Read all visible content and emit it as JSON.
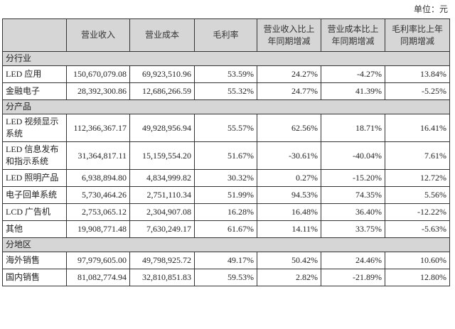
{
  "unit_label": "单位：元",
  "headers": [
    "",
    "营业收入",
    "营业成本",
    "毛利率",
    "营业收入比上年同期增减",
    "营业成本比上年同期增减",
    "毛利率比上年同期增减"
  ],
  "sections": [
    {
      "title": "分行业",
      "rows": [
        {
          "label": "LED 应用",
          "revenue": "150,670,079.08",
          "cost": "69,923,510.96",
          "margin": "53.59%",
          "rev_yoy": "24.27%",
          "cost_yoy": "-4.27%",
          "margin_yoy": "13.84%"
        },
        {
          "label": "金融电子",
          "revenue": "28,392,300.86",
          "cost": "12,686,266.59",
          "margin": "55.32%",
          "rev_yoy": "24.77%",
          "cost_yoy": "41.39%",
          "margin_yoy": "-5.25%"
        }
      ]
    },
    {
      "title": "分产品",
      "rows": [
        {
          "label": "LED 视频显示系统",
          "revenue": "112,366,367.17",
          "cost": "49,928,956.94",
          "margin": "55.57%",
          "rev_yoy": "62.56%",
          "cost_yoy": "18.71%",
          "margin_yoy": "16.41%"
        },
        {
          "label": "LED 信息发布和指示系统",
          "revenue": "31,364,817.11",
          "cost": "15,159,554.20",
          "margin": "51.67%",
          "rev_yoy": "-30.61%",
          "cost_yoy": "-40.04%",
          "margin_yoy": "7.61%"
        },
        {
          "label": "LED 照明产品",
          "revenue": "6,938,894.80",
          "cost": "4,834,999.82",
          "margin": "30.32%",
          "rev_yoy": "0.27%",
          "cost_yoy": "-15.20%",
          "margin_yoy": "12.72%"
        },
        {
          "label": "电子回单系统",
          "revenue": "5,730,464.26",
          "cost": "2,751,110.34",
          "margin": "51.99%",
          "rev_yoy": "94.53%",
          "cost_yoy": "74.35%",
          "margin_yoy": "5.56%"
        },
        {
          "label": "LCD 广告机",
          "revenue": "2,753,065.12",
          "cost": "2,304,907.08",
          "margin": "16.28%",
          "rev_yoy": "16.48%",
          "cost_yoy": "36.40%",
          "margin_yoy": "-12.22%"
        },
        {
          "label": "其他",
          "revenue": "19,908,771.48",
          "cost": "7,630,249.17",
          "margin": "61.67%",
          "rev_yoy": "14.11%",
          "cost_yoy": "33.75%",
          "margin_yoy": "-5.63%"
        }
      ]
    },
    {
      "title": "分地区",
      "rows": [
        {
          "label": "海外销售",
          "revenue": "97,979,605.00",
          "cost": "49,798,925.72",
          "margin": "49.17%",
          "rev_yoy": "50.42%",
          "cost_yoy": "24.46%",
          "margin_yoy": "10.60%"
        },
        {
          "label": "国内销售",
          "revenue": "81,082,774.94",
          "cost": "32,810,851.83",
          "margin": "59.53%",
          "rev_yoy": "2.82%",
          "cost_yoy": "-21.89%",
          "margin_yoy": "12.80%"
        }
      ]
    }
  ]
}
